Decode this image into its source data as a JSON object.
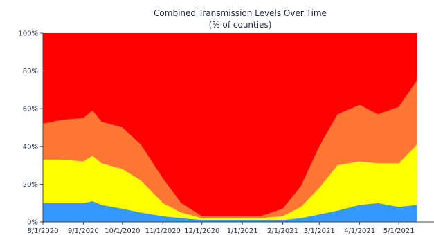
{
  "chart_data": {
    "type": "area",
    "title": "Combined Transmission Levels Over Time",
    "subtitle": "(% of counties)",
    "xlabel": "",
    "ylabel": "",
    "stacked": true,
    "x_tick_labels": [
      "8/1/2020",
      "9/1/2020",
      "10/1/2020",
      "11/1/2020",
      "12/1/2020",
      "1/1/2021",
      "2/1/2021",
      "3/1/2021",
      "4/1/2021",
      "5/1/2021"
    ],
    "y_tick_labels": [
      "0%",
      "20%",
      "40%",
      "60%",
      "80%",
      "100%"
    ],
    "ylim": [
      0,
      100
    ],
    "grid": false,
    "x": [
      "8/1/2020",
      "8/15/2020",
      "9/1/2020",
      "9/8/2020",
      "9/15/2020",
      "10/1/2020",
      "10/15/2020",
      "11/1/2020",
      "11/15/2020",
      "12/1/2020",
      "12/15/2020",
      "1/1/2021",
      "1/15/2021",
      "2/1/2021",
      "2/15/2021",
      "3/1/2021",
      "3/15/2021",
      "4/1/2021",
      "4/15/2021",
      "5/1/2021",
      "5/15/2021"
    ],
    "series": [
      {
        "color": "#3399ff",
        "values": [
          10,
          10,
          10,
          11,
          9,
          7,
          5,
          3,
          2,
          1,
          1,
          1,
          1,
          1,
          2,
          4,
          6,
          9,
          10,
          8,
          9
        ]
      },
      {
        "color": "#ffff00",
        "values": [
          23,
          23,
          22,
          24,
          22,
          21,
          17,
          7,
          3,
          1,
          1,
          1,
          1,
          2,
          6,
          14,
          24,
          23,
          21,
          23,
          32
        ]
      },
      {
        "color": "#ff7733",
        "values": [
          19,
          21,
          23,
          24,
          22,
          22,
          19,
          13,
          5,
          1,
          1,
          1,
          1,
          4,
          11,
          22,
          27,
          30,
          26,
          30,
          34
        ]
      },
      {
        "color": "#ff0000",
        "values": [
          48,
          46,
          45,
          41,
          47,
          50,
          59,
          77,
          90,
          97,
          97,
          97,
          97,
          93,
          81,
          60,
          43,
          38,
          43,
          39,
          25
        ]
      }
    ]
  }
}
